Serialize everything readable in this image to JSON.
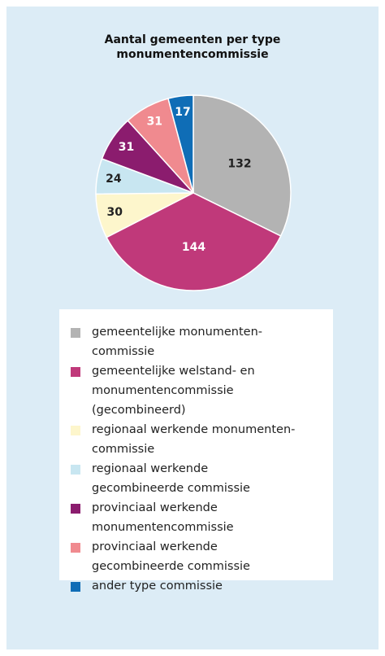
{
  "chart_data": {
    "type": "pie",
    "title": "Aantal gemeenten per type\nmonumentencommissie",
    "categories": [
      "gemeentelijke monumenten-\ncommissie",
      "gemeentelijke welstand- en\nmonumentencommissie\n(gecombineerd)",
      "regionaal werkende monumenten-\ncommissie",
      "regionaal werkende\ngecombineerde commissie",
      "provinciaal werkende\nmonumentencommissie",
      "provinciaal werkende\ngecombineerde commissie",
      "ander type commissie"
    ],
    "values": [
      132,
      144,
      30,
      24,
      31,
      31,
      17
    ],
    "colors": [
      "#b3b3b3",
      "#c0397a",
      "#fdf6cc",
      "#c8e6f1",
      "#8b1c6e",
      "#f08a8f",
      "#0f6db6"
    ]
  }
}
